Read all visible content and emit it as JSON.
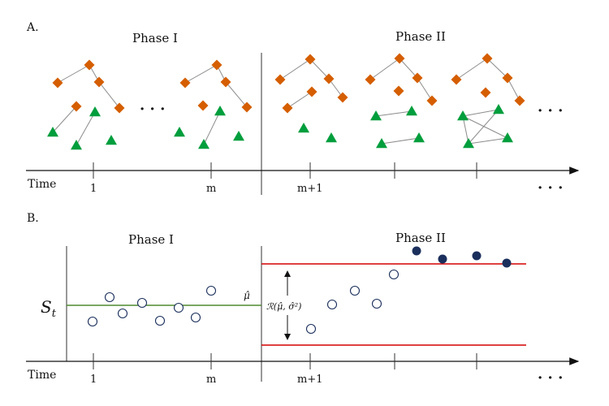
{
  "panel_a": {
    "label": "A.",
    "phase1_title": "Phase I",
    "phase2_title": "Phase II",
    "axis_label": "Time",
    "ticks": [
      "1",
      "m",
      "m+1"
    ],
    "ellipsis": "· · ·",
    "colors": {
      "diamond": "#d55e00",
      "triangle": "#009e3d",
      "edge": "#8c8c8c"
    }
  },
  "panel_b": {
    "label": "B.",
    "phase1_title": "Phase I",
    "phase2_title": "Phase II",
    "axis_label": "Time",
    "y_label": "S",
    "y_label_sub": "t",
    "ticks": [
      "1",
      "m",
      "m+1"
    ],
    "mu_label": "μ̂",
    "region_label": "ℛ(μ̂, σ̂²)",
    "ellipsis": "· · ·",
    "colors": {
      "mean_line": "#4f8a2e",
      "limit_line": "#d40000",
      "alarm_point": "#1b2f5c",
      "open_point": "#1b2f5c"
    }
  }
}
